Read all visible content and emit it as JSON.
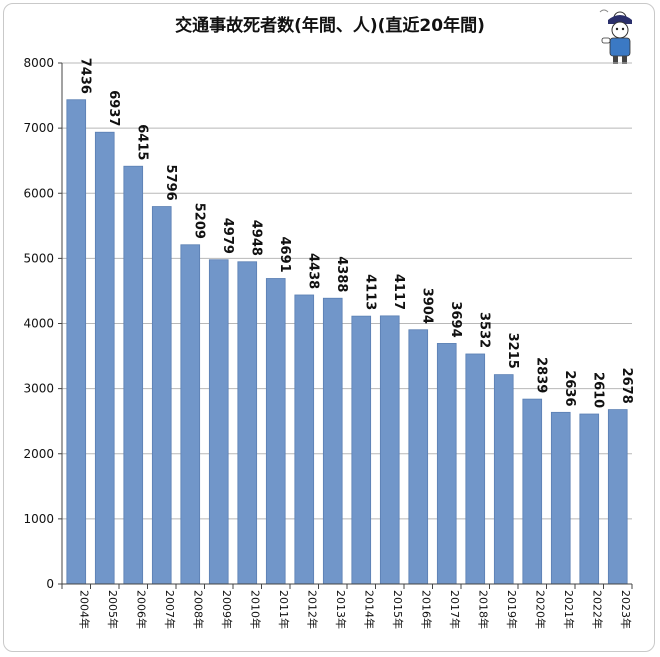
{
  "chart_data": {
    "type": "bar",
    "title": "交通事故死者数(年間、人)(直近20年間)",
    "xlabel": "",
    "ylabel": "",
    "categories": [
      "2004年",
      "2005年",
      "2006年",
      "2007年",
      "2008年",
      "2009年",
      "2010年",
      "2011年",
      "2012年",
      "2013年",
      "2014年",
      "2015年",
      "2016年",
      "2017年",
      "2018年",
      "2019年",
      "2020年",
      "2021年",
      "2022年",
      "2023年"
    ],
    "values": [
      7436,
      6937,
      6415,
      5796,
      5209,
      4979,
      4948,
      4691,
      4438,
      4388,
      4113,
      4117,
      3904,
      3694,
      3532,
      3215,
      2839,
      2636,
      2610,
      2678
    ],
    "ylim": [
      0,
      8000
    ],
    "yticks": [
      0,
      1000,
      2000,
      3000,
      4000,
      5000,
      6000,
      7000,
      8000
    ],
    "grid": true,
    "legend": "none",
    "bar_color": "#7196c9",
    "bar_edge_color": "#5a7fb3"
  }
}
